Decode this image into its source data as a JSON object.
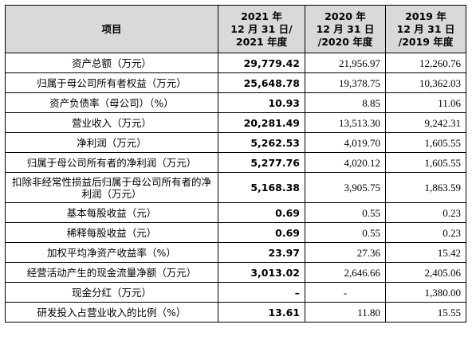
{
  "header": {
    "item": "项目",
    "y2021": [
      "2021 年",
      "12 月 31 日/",
      "2021 年度"
    ],
    "y2020": [
      "2020 年",
      "12 月 31 日",
      "/2020 年度"
    ],
    "y2019": [
      "2019 年",
      "12 月 31 日",
      "/2019 年度"
    ]
  },
  "rows": [
    {
      "label": "资产总额（万元）",
      "v2021": "29,779.42",
      "v2020": "21,956.97",
      "v2019": "12,260.76"
    },
    {
      "label": "归属于母公司所有者权益（万元）",
      "v2021": "25,648.78",
      "v2020": "19,378.75",
      "v2019": "10,362.03"
    },
    {
      "label": "资产负债率（母公司）（%）",
      "v2021": "10.93",
      "v2020": "8.85",
      "v2019": "11.06"
    },
    {
      "label": "营业收入（万元）",
      "v2021": "20,281.49",
      "v2020": "13,513.30",
      "v2019": "9,242.31"
    },
    {
      "label": "净利润（万元）",
      "v2021": "5,262.53",
      "v2020": "4,019.70",
      "v2019": "1,605.55"
    },
    {
      "label": "归属于母公司所有者的净利润（万元）",
      "v2021": "5,277.76",
      "v2020": "4,020.12",
      "v2019": "1,605.55"
    },
    {
      "label": "扣除非经常性损益后归属于母公司所有者的净利润（万元）",
      "v2021": "5,168.38",
      "v2020": "3,905.75",
      "v2019": "1,863.59"
    },
    {
      "label": "基本每股收益（元）",
      "v2021": "0.69",
      "v2020": "0.55",
      "v2019": "0.23"
    },
    {
      "label": "稀释每股收益（元）",
      "v2021": "0.69",
      "v2020": "0.55",
      "v2019": "0.23"
    },
    {
      "label": "加权平均净资产收益率（%）",
      "v2021": "23.97",
      "v2020": "27.36",
      "v2019": "15.42"
    },
    {
      "label": "经营活动产生的现金流量净额（万元）",
      "v2021": "3,013.02",
      "v2020": "2,646.66",
      "v2019": "2,405.06"
    },
    {
      "label": "现金分红（万元）",
      "v2021": "–",
      "v2020": "-",
      "v2019": "1,380.00"
    },
    {
      "label": "研发投入占营业收入的比例（%）",
      "v2021": "13.61",
      "v2020": "11.80",
      "v2019": "15.55"
    }
  ]
}
